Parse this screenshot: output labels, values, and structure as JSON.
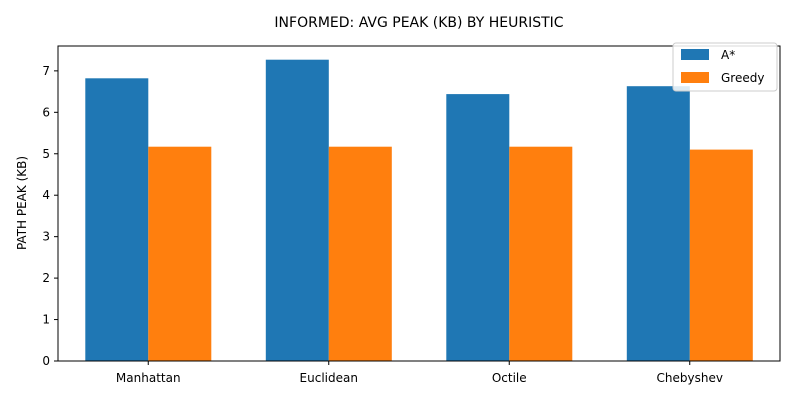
{
  "chart_data": {
    "type": "bar",
    "title": "INFORMED: AVG PEAK (KB) BY HEURISTIC",
    "xlabel": "",
    "ylabel": "PATH PEAK (KB)",
    "categories": [
      "Manhattan",
      "Euclidean",
      "Octile",
      "Chebyshev"
    ],
    "series": [
      {
        "name": "A*",
        "color": "#1f77b4",
        "values": [
          6.82,
          7.27,
          6.44,
          6.63
        ]
      },
      {
        "name": "Greedy",
        "color": "#ff7f0e",
        "values": [
          5.17,
          5.17,
          5.17,
          5.1
        ]
      }
    ],
    "ylim": [
      0,
      7.6
    ],
    "yticks": [
      0,
      1,
      2,
      3,
      4,
      5,
      6,
      7
    ],
    "grid": false,
    "legend_position": "top-right"
  }
}
